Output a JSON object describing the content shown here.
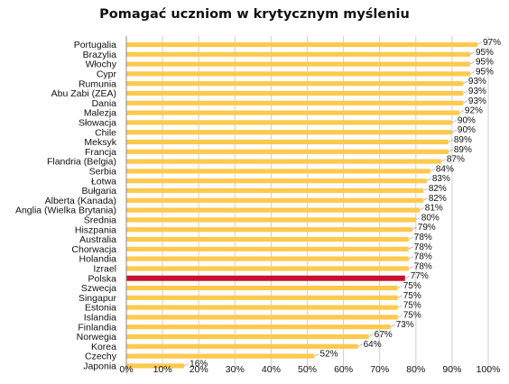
{
  "chart_data": {
    "type": "bar",
    "orientation": "horizontal",
    "title": "Pomagać uczniom w krytycznym myśleniu",
    "categories": [
      "Portugalia",
      "Brazylia",
      "Włochy",
      "Cypr",
      "Rumunia",
      "Abu Zabi (ZEA)",
      "Dania",
      "Malezja",
      "Słowacja",
      "Chile",
      "Meksyk",
      "Francja",
      "Flandria (Belgia)",
      "Serbia",
      "Łotwa",
      "Bułgaria",
      "Alberta (Kanada)",
      "Anglia (Wielka Brytania)",
      "Średnia",
      "Hiszpania",
      "Australia",
      "Chorwacja",
      "Holandia",
      "Izrael",
      "Polska",
      "Szwecja",
      "Singapur",
      "Estonia",
      "Islandia",
      "Finlandia",
      "Norwegia",
      "Korea",
      "Czechy",
      "Japonia"
    ],
    "values": [
      97,
      95,
      95,
      95,
      93,
      93,
      93,
      92,
      90,
      90,
      89,
      89,
      87,
      84,
      83,
      82,
      82,
      81,
      80,
      79,
      78,
      78,
      78,
      78,
      77,
      75,
      75,
      75,
      75,
      73,
      67,
      64,
      52,
      16
    ],
    "value_labels": [
      "97%",
      "95%",
      "95%",
      "95%",
      "93%",
      "93%",
      "93%",
      "92%",
      "90%",
      "90%",
      "89%",
      "89%",
      "87%",
      "84%",
      "83%",
      "82%",
      "82%",
      "81%",
      "80%",
      "79%",
      "78%",
      "78%",
      "78%",
      "78%",
      "77%",
      "75%",
      "75%",
      "75%",
      "75%",
      "73%",
      "67%",
      "64%",
      "52%",
      "16%"
    ],
    "highlight": "Polska",
    "xlim": [
      0,
      100
    ],
    "xticks": [
      "0%",
      "10%",
      "20%",
      "30%",
      "40%",
      "50%",
      "60%",
      "70%",
      "80%",
      "90%",
      "100%"
    ],
    "grid": true,
    "colors": {
      "bar": "#FFC94D",
      "highlight": "#C8102E",
      "grid": "#D0D0D0",
      "axis": "#888888"
    }
  }
}
